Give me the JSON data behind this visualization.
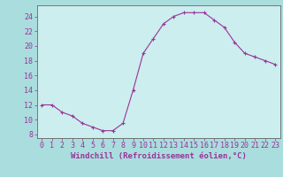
{
  "x": [
    0,
    1,
    2,
    3,
    4,
    5,
    6,
    7,
    8,
    9,
    10,
    11,
    12,
    13,
    14,
    15,
    16,
    17,
    18,
    19,
    20,
    21,
    22,
    23
  ],
  "y": [
    12,
    12,
    11,
    10.5,
    9.5,
    9,
    8.5,
    8.5,
    9.5,
    14,
    19,
    21,
    23,
    24,
    24.5,
    24.5,
    24.5,
    23.5,
    22.5,
    20.5,
    19,
    18.5,
    18,
    17.5
  ],
  "line_color": "#993399",
  "marker": "+",
  "background_color": "#aadddd",
  "grid_color": "#cceeee",
  "xlabel": "Windchill (Refroidissement éolien,°C)",
  "ylabel_ticks": [
    8,
    10,
    12,
    14,
    16,
    18,
    20,
    22,
    24
  ],
  "xlim": [
    -0.5,
    23.5
  ],
  "ylim": [
    7.5,
    25.5
  ],
  "tick_color": "#993399",
  "label_color": "#993399",
  "font_size": 6,
  "xlabel_font_size": 6.5
}
